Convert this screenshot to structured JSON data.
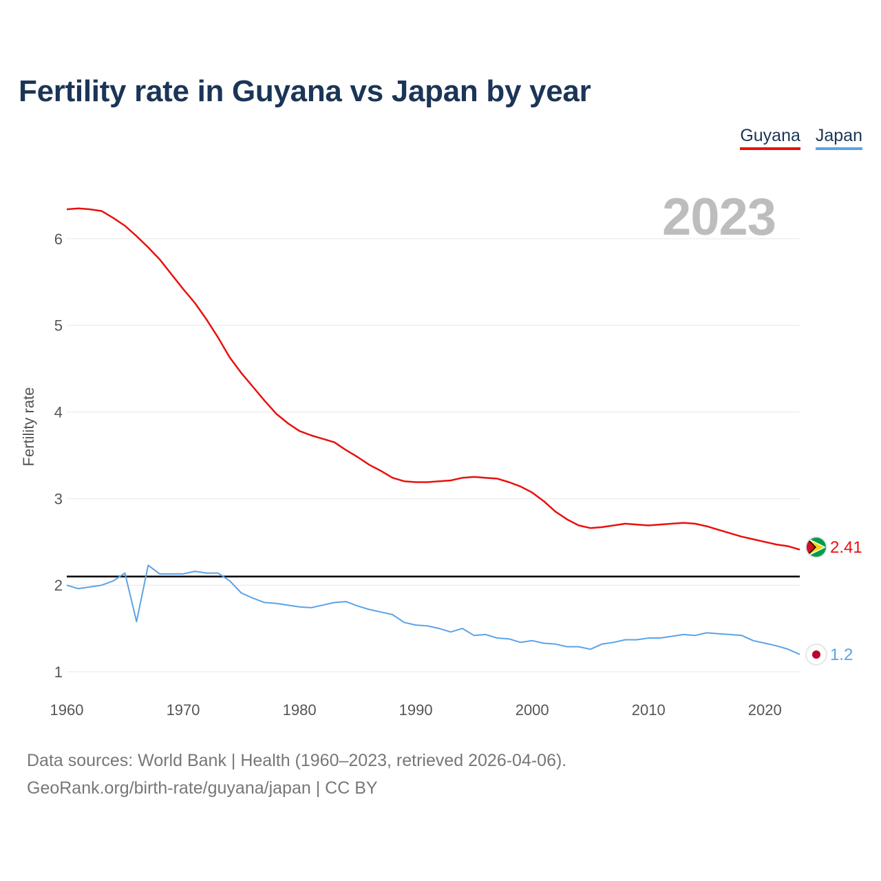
{
  "title": "Fertility rate in Guyana vs Japan by year",
  "legend": [
    {
      "name": "Guyana",
      "color": "#e8100d"
    },
    {
      "name": "Japan",
      "color": "#5aa3e6"
    }
  ],
  "year_watermark": "2023",
  "footer": {
    "line1": "Data sources: World Bank | Health (1960–2023, retrieved 2026-04-06).",
    "line2": "GeoRank.org/birth-rate/guyana/japan | CC BY"
  },
  "chart_data": {
    "type": "line",
    "title": "Fertility rate in Guyana vs Japan by year",
    "xlabel": "",
    "ylabel": "Fertility rate",
    "xlim": [
      1960,
      2023
    ],
    "ylim": [
      0.77,
      6.73
    ],
    "x_ticks": [
      1960,
      1970,
      1980,
      1990,
      2000,
      2010,
      2020
    ],
    "y_ticks": [
      1,
      2,
      3,
      4,
      5,
      6
    ],
    "grid": "horizontal",
    "legend_position": "top-right",
    "reference_line": {
      "y": 2.1
    },
    "x": [
      1960,
      1961,
      1962,
      1963,
      1964,
      1965,
      1966,
      1967,
      1968,
      1969,
      1970,
      1971,
      1972,
      1973,
      1974,
      1975,
      1976,
      1977,
      1978,
      1979,
      1980,
      1981,
      1982,
      1983,
      1984,
      1985,
      1986,
      1987,
      1988,
      1989,
      1990,
      1991,
      1992,
      1993,
      1994,
      1995,
      1996,
      1997,
      1998,
      1999,
      2000,
      2001,
      2002,
      2003,
      2004,
      2005,
      2006,
      2007,
      2008,
      2009,
      2010,
      2011,
      2012,
      2013,
      2014,
      2015,
      2016,
      2017,
      2018,
      2019,
      2020,
      2021,
      2022,
      2023
    ],
    "series": [
      {
        "name": "Guyana",
        "color": "#e8100d",
        "end_label": "2.41",
        "values": [
          6.34,
          6.35,
          6.34,
          6.32,
          6.24,
          6.15,
          6.03,
          5.9,
          5.76,
          5.59,
          5.42,
          5.26,
          5.07,
          4.86,
          4.63,
          4.45,
          4.29,
          4.13,
          3.98,
          3.87,
          3.78,
          3.73,
          3.69,
          3.65,
          3.56,
          3.48,
          3.39,
          3.32,
          3.24,
          3.2,
          3.19,
          3.19,
          3.2,
          3.21,
          3.24,
          3.25,
          3.24,
          3.23,
          3.19,
          3.14,
          3.07,
          2.97,
          2.85,
          2.76,
          2.69,
          2.66,
          2.67,
          2.69,
          2.71,
          2.7,
          2.69,
          2.7,
          2.71,
          2.72,
          2.71,
          2.68,
          2.64,
          2.6,
          2.56,
          2.53,
          2.5,
          2.47,
          2.45,
          2.41
        ]
      },
      {
        "name": "Japan",
        "color": "#5aa3e6",
        "end_label": "1.2",
        "values": [
          2.0,
          1.96,
          1.98,
          2.0,
          2.05,
          2.14,
          1.58,
          2.23,
          2.13,
          2.13,
          2.13,
          2.16,
          2.14,
          2.14,
          2.05,
          1.91,
          1.85,
          1.8,
          1.79,
          1.77,
          1.75,
          1.74,
          1.77,
          1.8,
          1.81,
          1.76,
          1.72,
          1.69,
          1.66,
          1.57,
          1.54,
          1.53,
          1.5,
          1.46,
          1.5,
          1.42,
          1.43,
          1.39,
          1.38,
          1.34,
          1.36,
          1.33,
          1.32,
          1.29,
          1.29,
          1.26,
          1.32,
          1.34,
          1.37,
          1.37,
          1.39,
          1.39,
          1.41,
          1.43,
          1.42,
          1.45,
          1.44,
          1.43,
          1.42,
          1.36,
          1.33,
          1.3,
          1.26,
          1.2
        ]
      }
    ]
  }
}
